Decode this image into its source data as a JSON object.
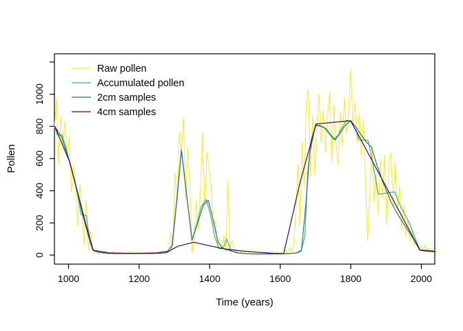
{
  "figure": {
    "background": "#ffffff",
    "legend": {
      "items": [
        {
          "label": "Raw pollen",
          "color": "#FDE725"
        },
        {
          "label": "Accumulated pollen",
          "color": "#35B779"
        },
        {
          "label": "2cm samples",
          "color": "#31688E"
        },
        {
          "label": "4cm samples",
          "color": "#440154"
        }
      ]
    }
  },
  "chart_data": {
    "type": "line",
    "title": "",
    "xlabel": "Time (years)",
    "ylabel": "Pollen",
    "x_ticks": [
      1000,
      1200,
      1400,
      1600,
      1800,
      2000
    ],
    "y_ticks": [
      0,
      200,
      400,
      600,
      800,
      1000,
      1200
    ],
    "y_tick_labels": [
      "0",
      "200",
      "400",
      "600",
      "800",
      "1000",
      ""
    ],
    "xlim": [
      960,
      2038
    ],
    "ylim": [
      -56,
      1251
    ],
    "grid": false,
    "legend_position": "top-left-inside",
    "series": [
      {
        "name": "Raw pollen",
        "color": "#FDE725",
        "line_width": 1,
        "x_start": 960,
        "x_step": 6,
        "values": [
          790,
          975,
          560,
          860,
          700,
          830,
          610,
          740,
          390,
          560,
          460,
          180,
          440,
          270,
          60,
          340,
          30,
          150,
          40,
          10,
          25,
          5,
          20,
          10,
          25,
          5,
          15,
          8,
          20,
          5,
          12,
          20,
          6,
          15,
          5,
          18,
          8,
          15,
          5,
          12,
          20,
          6,
          15,
          8,
          18,
          5,
          12,
          8,
          20,
          6,
          15,
          10,
          25,
          12,
          30,
          140,
          60,
          510,
          330,
          760,
          650,
          850,
          340,
          670,
          420,
          15,
          90,
          340,
          150,
          420,
          760,
          280,
          640,
          535,
          430,
          180,
          215,
          60,
          100,
          30,
          120,
          20,
          460,
          50,
          90,
          15,
          30,
          8,
          20,
          5,
          15,
          8,
          20,
          5,
          12,
          25,
          8,
          15,
          5,
          22,
          10,
          18,
          5,
          15,
          8,
          20,
          5,
          15,
          10,
          30,
          12,
          45,
          20,
          60,
          250,
          560,
          180,
          700,
          420,
          950,
          1030,
          490,
          870,
          500,
          820,
          1000,
          700,
          900,
          640,
          860,
          1010,
          580,
          930,
          700,
          560,
          890,
          680,
          980,
          750,
          900,
          1155,
          820,
          950,
          700,
          880,
          620,
          850,
          450,
          90,
          400,
          680,
          330,
          500,
          250,
          600,
          350,
          620,
          180,
          560,
          640,
          300,
          580,
          270,
          430,
          160,
          310,
          120,
          220,
          90,
          160,
          60,
          90,
          35,
          55,
          25,
          60,
          30,
          45,
          20,
          35,
          25
        ]
      },
      {
        "name": "Accumulated pollen",
        "color": "#35B779",
        "line_width": 1.2,
        "points": [
          [
            961,
            800
          ],
          [
            968,
            748
          ],
          [
            982,
            745
          ],
          [
            996,
            640
          ],
          [
            1010,
            520
          ],
          [
            1024,
            395
          ],
          [
            1036,
            250
          ],
          [
            1050,
            246
          ],
          [
            1062,
            70
          ],
          [
            1072,
            25
          ],
          [
            1090,
            15
          ],
          [
            1115,
            10
          ],
          [
            1140,
            10
          ],
          [
            1165,
            10
          ],
          [
            1190,
            10
          ],
          [
            1215,
            10
          ],
          [
            1240,
            10
          ],
          [
            1262,
            12
          ],
          [
            1280,
            16
          ],
          [
            1292,
            35
          ],
          [
            1306,
            330
          ],
          [
            1320,
            650
          ],
          [
            1334,
            390
          ],
          [
            1350,
            95
          ],
          [
            1362,
            180
          ],
          [
            1376,
            300
          ],
          [
            1390,
            345
          ],
          [
            1402,
            255
          ],
          [
            1414,
            120
          ],
          [
            1426,
            40
          ],
          [
            1438,
            42
          ],
          [
            1448,
            100
          ],
          [
            1460,
            30
          ],
          [
            1475,
            14
          ],
          [
            1500,
            9
          ],
          [
            1525,
            8
          ],
          [
            1550,
            8
          ],
          [
            1575,
            8
          ],
          [
            1600,
            8
          ],
          [
            1625,
            9
          ],
          [
            1645,
            14
          ],
          [
            1660,
            30
          ],
          [
            1670,
            120
          ],
          [
            1678,
            520
          ],
          [
            1688,
            720
          ],
          [
            1700,
            805
          ],
          [
            1712,
            800
          ],
          [
            1726,
            790
          ],
          [
            1740,
            750
          ],
          [
            1752,
            718
          ],
          [
            1764,
            745
          ],
          [
            1776,
            795
          ],
          [
            1788,
            838
          ],
          [
            1800,
            830
          ],
          [
            1810,
            790
          ],
          [
            1817,
            763
          ],
          [
            1823,
            716
          ],
          [
            1849,
            713
          ],
          [
            1860,
            600
          ],
          [
            1872,
            450
          ],
          [
            1878,
            378
          ],
          [
            1900,
            385
          ],
          [
            1924,
            393
          ],
          [
            1940,
            310
          ],
          [
            1956,
            240
          ],
          [
            1966,
            200
          ],
          [
            1980,
            120
          ],
          [
            1996,
            32
          ],
          [
            2010,
            26
          ],
          [
            2025,
            22
          ],
          [
            2040,
            20
          ]
        ]
      },
      {
        "name": "2cm samples",
        "color": "#31688E",
        "line_width": 1.2,
        "points": [
          [
            961,
            800
          ],
          [
            980,
            735
          ],
          [
            1000,
            600
          ],
          [
            1020,
            440
          ],
          [
            1040,
            250
          ],
          [
            1056,
            120
          ],
          [
            1068,
            35
          ],
          [
            1085,
            18
          ],
          [
            1110,
            11
          ],
          [
            1135,
            10
          ],
          [
            1160,
            10
          ],
          [
            1185,
            10
          ],
          [
            1210,
            10
          ],
          [
            1235,
            10
          ],
          [
            1258,
            11
          ],
          [
            1278,
            14
          ],
          [
            1294,
            60
          ],
          [
            1308,
            360
          ],
          [
            1320,
            655
          ],
          [
            1336,
            350
          ],
          [
            1350,
            92
          ],
          [
            1366,
            200
          ],
          [
            1382,
            310
          ],
          [
            1396,
            340
          ],
          [
            1410,
            220
          ],
          [
            1424,
            80
          ],
          [
            1438,
            40
          ],
          [
            1452,
            32
          ],
          [
            1466,
            22
          ],
          [
            1482,
            14
          ],
          [
            1505,
            9
          ],
          [
            1530,
            8
          ],
          [
            1555,
            8
          ],
          [
            1580,
            8
          ],
          [
            1605,
            9
          ],
          [
            1628,
            10
          ],
          [
            1648,
            14
          ],
          [
            1660,
            25
          ],
          [
            1672,
            300
          ],
          [
            1684,
            640
          ],
          [
            1700,
            810
          ],
          [
            1714,
            805
          ],
          [
            1730,
            785
          ],
          [
            1742,
            750
          ],
          [
            1756,
            716
          ],
          [
            1770,
            760
          ],
          [
            1784,
            805
          ],
          [
            1800,
            835
          ],
          [
            1815,
            795
          ],
          [
            1830,
            745
          ],
          [
            1845,
            700
          ],
          [
            1859,
            670
          ],
          [
            1874,
            560
          ],
          [
            1890,
            460
          ],
          [
            1905,
            380
          ],
          [
            1914,
            330
          ],
          [
            1930,
            265
          ],
          [
            1945,
            210
          ],
          [
            1960,
            160
          ],
          [
            1975,
            110
          ],
          [
            1996,
            30
          ],
          [
            2012,
            24
          ],
          [
            2026,
            22
          ],
          [
            2040,
            20
          ]
        ]
      },
      {
        "name": "4cm samples",
        "color": "#440154",
        "line_width": 1.2,
        "points": [
          [
            961,
            800
          ],
          [
            1004,
            575
          ],
          [
            1048,
            200
          ],
          [
            1070,
            30
          ],
          [
            1115,
            14
          ],
          [
            1160,
            11
          ],
          [
            1205,
            11
          ],
          [
            1250,
            14
          ],
          [
            1285,
            25
          ],
          [
            1310,
            55
          ],
          [
            1355,
            80
          ],
          [
            1400,
            58
          ],
          [
            1445,
            38
          ],
          [
            1490,
            26
          ],
          [
            1535,
            18
          ],
          [
            1580,
            11
          ],
          [
            1610,
            10
          ],
          [
            1656,
            450
          ],
          [
            1702,
            815
          ],
          [
            1800,
            835
          ],
          [
            1996,
            32
          ],
          [
            2040,
            24
          ]
        ]
      }
    ]
  }
}
